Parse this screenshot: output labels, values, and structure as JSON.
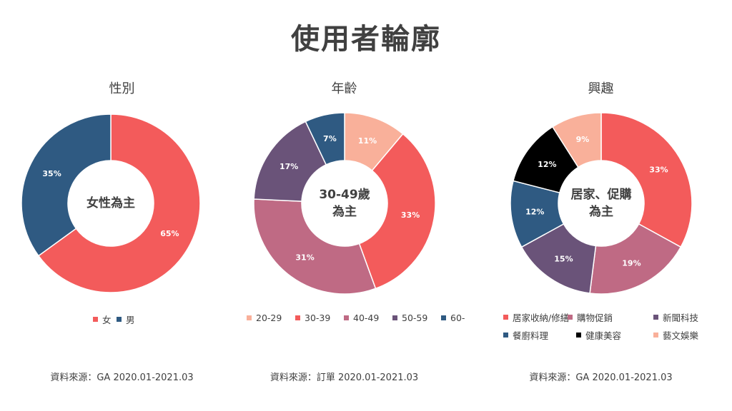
{
  "page": {
    "title": "使用者輪廓"
  },
  "chart_data": [
    {
      "type": "pie",
      "title": "性別",
      "center_label": "女性為主",
      "categories": [
        "女",
        "男"
      ],
      "values": [
        65,
        35
      ],
      "labels": [
        "65%",
        "35%"
      ],
      "colors": [
        "#F35B5B",
        "#2F5A82"
      ],
      "source": "資料來源：GA  2020.01-2021.03"
    },
    {
      "type": "pie",
      "title": "年齡",
      "center_label": "30-49歲\n為主",
      "categories": [
        "20-29",
        "30-39",
        "40-49",
        "50-59",
        "60-"
      ],
      "values": [
        11,
        33,
        31,
        17,
        7
      ],
      "labels": [
        "11%",
        "33%",
        "31%",
        "17%",
        "7%"
      ],
      "colors": [
        "#F9B09A",
        "#F35B5B",
        "#BF6A84",
        "#6A5379",
        "#2F5A82"
      ],
      "source": "資料來源：訂單 2020.01-2021.03"
    },
    {
      "type": "pie",
      "title": "興趣",
      "center_label": "居家、促購\n為主",
      "categories": [
        "居家收納/修繕",
        "購物促銷",
        "新聞科技",
        "餐廚料理",
        "健康美容",
        "藝文娛樂"
      ],
      "values": [
        33,
        19,
        15,
        12,
        12,
        9
      ],
      "labels": [
        "33%",
        "19%",
        "15%",
        "12%",
        "12%",
        "9%"
      ],
      "colors": [
        "#F35B5B",
        "#BF6A84",
        "#6A5379",
        "#2F5A82",
        "#000000",
        "#F9B09A"
      ],
      "source": "資料來源：GA  2020.01-2021.03"
    }
  ]
}
